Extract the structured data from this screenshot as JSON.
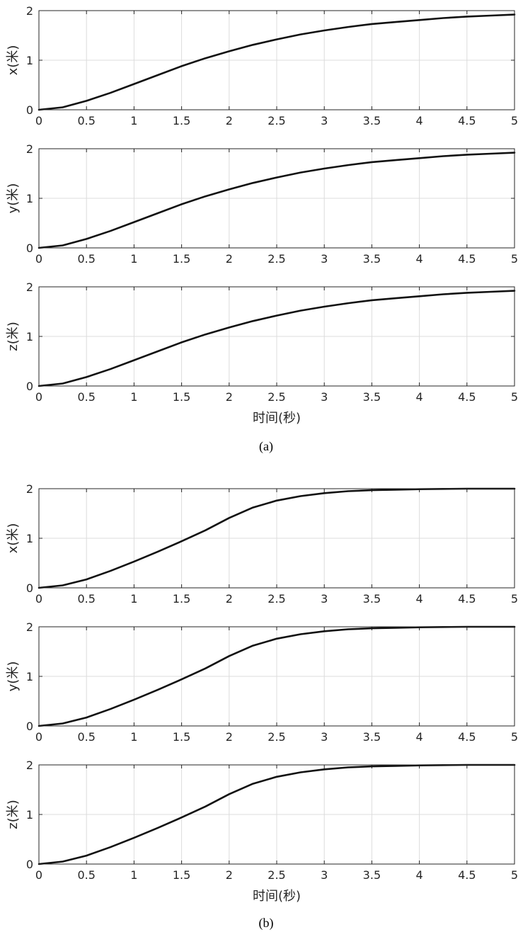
{
  "figures": [
    {
      "caption": "(a)",
      "xlabel": "时间(秒)",
      "chart_data": [
        {
          "type": "line",
          "ylabel": "x(米)",
          "xlim": [
            0,
            5
          ],
          "ylim": [
            0,
            2
          ],
          "xticks": [
            "0",
            "0.5",
            "1",
            "1.5",
            "2",
            "2.5",
            "3",
            "3.5",
            "4",
            "4.5",
            "5"
          ],
          "yticks": [
            "0",
            "1",
            "2"
          ],
          "grid": true,
          "x": [
            0,
            0.25,
            0.5,
            0.75,
            1,
            1.25,
            1.5,
            1.75,
            2,
            2.25,
            2.5,
            2.75,
            3,
            3.25,
            3.5,
            3.75,
            4,
            4.25,
            4.5,
            4.75,
            5
          ],
          "series": [
            {
              "values": [
                0,
                0.05,
                0.18,
                0.34,
                0.52,
                0.7,
                0.88,
                1.04,
                1.18,
                1.31,
                1.42,
                1.52,
                1.6,
                1.67,
                1.73,
                1.77,
                1.81,
                1.85,
                1.88,
                1.9,
                1.92
              ]
            }
          ]
        },
        {
          "type": "line",
          "ylabel": "y(米)",
          "xlim": [
            0,
            5
          ],
          "ylim": [
            0,
            2
          ],
          "xticks": [
            "0",
            "0.5",
            "1",
            "1.5",
            "2",
            "2.5",
            "3",
            "3.5",
            "4",
            "4.5",
            "5"
          ],
          "yticks": [
            "0",
            "1",
            "2"
          ],
          "grid": true,
          "x": [
            0,
            0.25,
            0.5,
            0.75,
            1,
            1.25,
            1.5,
            1.75,
            2,
            2.25,
            2.5,
            2.75,
            3,
            3.25,
            3.5,
            3.75,
            4,
            4.25,
            4.5,
            4.75,
            5
          ],
          "series": [
            {
              "values": [
                0,
                0.05,
                0.18,
                0.34,
                0.52,
                0.7,
                0.88,
                1.04,
                1.18,
                1.31,
                1.42,
                1.52,
                1.6,
                1.67,
                1.73,
                1.77,
                1.81,
                1.85,
                1.88,
                1.9,
                1.92
              ]
            }
          ]
        },
        {
          "type": "line",
          "ylabel": "z(米)",
          "xlim": [
            0,
            5
          ],
          "ylim": [
            0,
            2
          ],
          "xticks": [
            "0",
            "0.5",
            "1",
            "1.5",
            "2",
            "2.5",
            "3",
            "3.5",
            "4",
            "4.5",
            "5"
          ],
          "yticks": [
            "0",
            "1",
            "2"
          ],
          "grid": true,
          "x": [
            0,
            0.25,
            0.5,
            0.75,
            1,
            1.25,
            1.5,
            1.75,
            2,
            2.25,
            2.5,
            2.75,
            3,
            3.25,
            3.5,
            3.75,
            4,
            4.25,
            4.5,
            4.75,
            5
          ],
          "series": [
            {
              "values": [
                0,
                0.05,
                0.18,
                0.34,
                0.52,
                0.7,
                0.88,
                1.04,
                1.18,
                1.31,
                1.42,
                1.52,
                1.6,
                1.67,
                1.73,
                1.77,
                1.81,
                1.85,
                1.88,
                1.9,
                1.92
              ]
            }
          ]
        }
      ]
    },
    {
      "caption": "(b)",
      "xlabel": "时间(秒)",
      "chart_data": [
        {
          "type": "line",
          "ylabel": "x(米)",
          "xlim": [
            0,
            5
          ],
          "ylim": [
            0,
            2
          ],
          "xticks": [
            "0",
            "0.5",
            "1",
            "1.5",
            "2",
            "2.5",
            "3",
            "3.5",
            "4",
            "4.5",
            "5"
          ],
          "yticks": [
            "0",
            "1",
            "2"
          ],
          "grid": true,
          "x": [
            0,
            0.25,
            0.5,
            0.75,
            1,
            1.25,
            1.5,
            1.75,
            2,
            2.25,
            2.5,
            2.75,
            3,
            3.25,
            3.5,
            3.75,
            4,
            4.25,
            4.5,
            4.75,
            5
          ],
          "series": [
            {
              "values": [
                0,
                0.05,
                0.17,
                0.34,
                0.53,
                0.73,
                0.94,
                1.16,
                1.41,
                1.62,
                1.76,
                1.85,
                1.91,
                1.95,
                1.97,
                1.98,
                1.99,
                1.995,
                2,
                2,
                2
              ]
            }
          ]
        },
        {
          "type": "line",
          "ylabel": "y(米)",
          "xlim": [
            0,
            5
          ],
          "ylim": [
            0,
            2
          ],
          "xticks": [
            "0",
            "0.5",
            "1",
            "1.5",
            "2",
            "2.5",
            "3",
            "3.5",
            "4",
            "4.5",
            "5"
          ],
          "yticks": [
            "0",
            "1",
            "2"
          ],
          "grid": true,
          "x": [
            0,
            0.25,
            0.5,
            0.75,
            1,
            1.25,
            1.5,
            1.75,
            2,
            2.25,
            2.5,
            2.75,
            3,
            3.25,
            3.5,
            3.75,
            4,
            4.25,
            4.5,
            4.75,
            5
          ],
          "series": [
            {
              "values": [
                0,
                0.05,
                0.17,
                0.34,
                0.53,
                0.73,
                0.94,
                1.16,
                1.41,
                1.62,
                1.76,
                1.85,
                1.91,
                1.95,
                1.97,
                1.98,
                1.99,
                1.995,
                2,
                2,
                2
              ]
            }
          ]
        },
        {
          "type": "line",
          "ylabel": "z(米)",
          "xlim": [
            0,
            5
          ],
          "ylim": [
            0,
            2
          ],
          "xticks": [
            "0",
            "0.5",
            "1",
            "1.5",
            "2",
            "2.5",
            "3",
            "3.5",
            "4",
            "4.5",
            "5"
          ],
          "yticks": [
            "0",
            "1",
            "2"
          ],
          "grid": true,
          "x": [
            0,
            0.25,
            0.5,
            0.75,
            1,
            1.25,
            1.5,
            1.75,
            2,
            2.25,
            2.5,
            2.75,
            3,
            3.25,
            3.5,
            3.75,
            4,
            4.25,
            4.5,
            4.75,
            5
          ],
          "series": [
            {
              "values": [
                0,
                0.05,
                0.17,
                0.34,
                0.53,
                0.73,
                0.94,
                1.16,
                1.41,
                1.62,
                1.76,
                1.85,
                1.91,
                1.95,
                1.97,
                1.98,
                1.99,
                1.995,
                2,
                2,
                2
              ]
            }
          ]
        }
      ]
    }
  ]
}
